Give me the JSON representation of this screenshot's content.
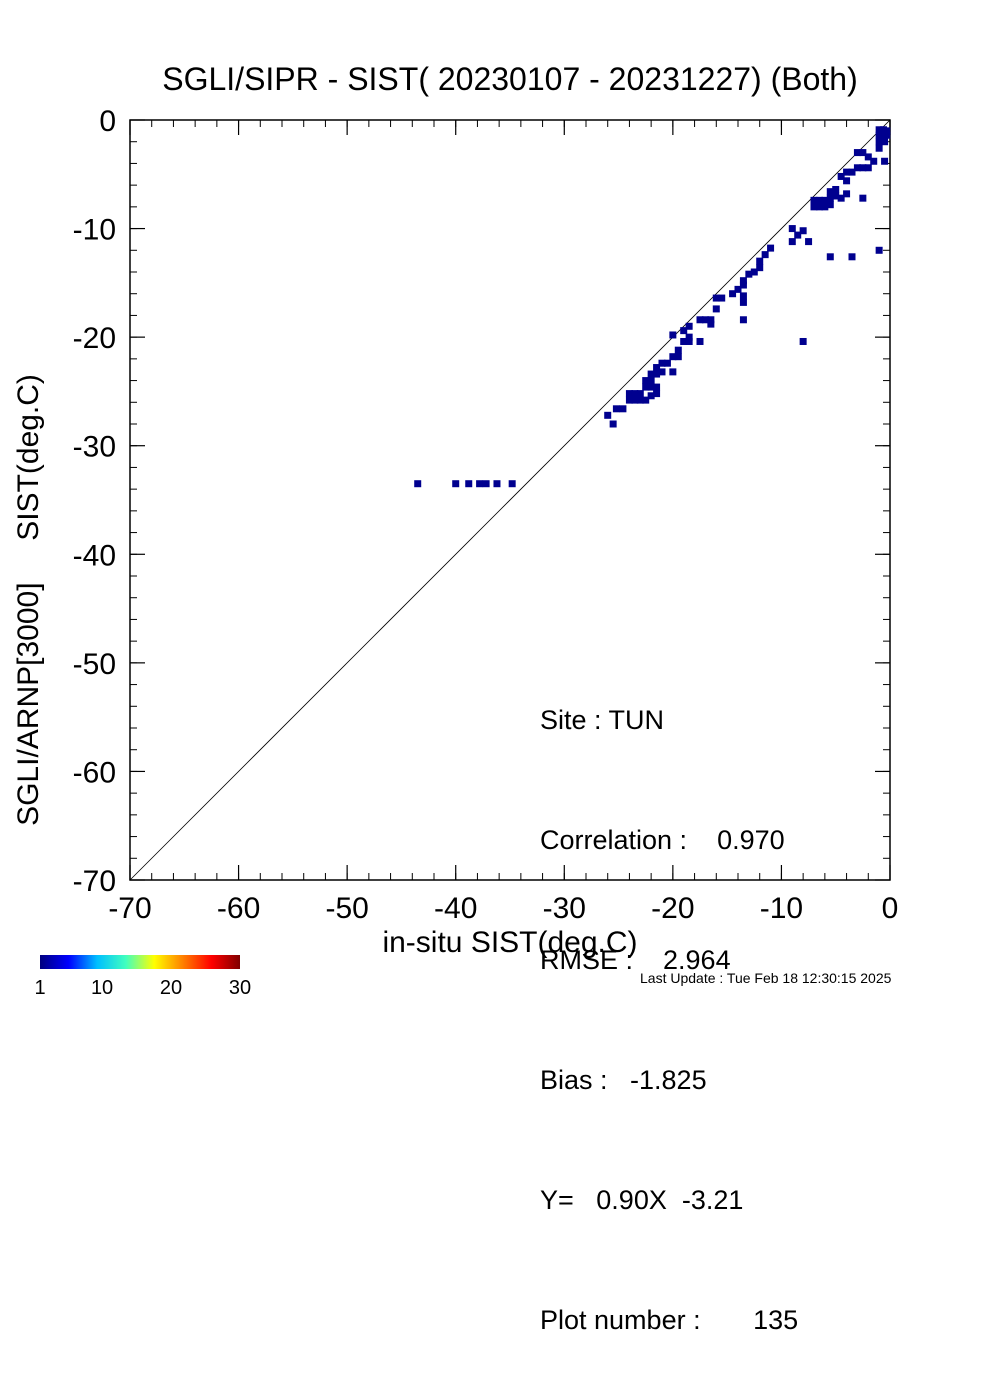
{
  "chart_data": {
    "type": "scatter",
    "plot_style": "density-binned scatter",
    "title": "SGLI/SIPR - SIST( 20230107 - 20231227) (Both)",
    "xlabel": "in-situ SIST(deg.C)",
    "ylabel": "SGLI/ARNP[3000]     SIST(deg.C)",
    "xlim": [
      -70,
      0
    ],
    "ylim": [
      -70,
      0
    ],
    "x_ticks": [
      "-70",
      "-60",
      "-50",
      "-40",
      "-30",
      "-20",
      "-10",
      "0"
    ],
    "y_ticks": [
      "-70",
      "-60",
      "-50",
      "-40",
      "-30",
      "-20",
      "-10",
      "0"
    ],
    "x_tick_values": [
      -70,
      -60,
      -50,
      -40,
      -30,
      -20,
      -10,
      0
    ],
    "y_tick_values": [
      -70,
      -60,
      -50,
      -40,
      -30,
      -20,
      -10,
      0
    ],
    "reference_line": "1:1",
    "grid": false,
    "point_color": "#00008f",
    "colorbar": {
      "ticks": [
        "1",
        "10",
        "20",
        "30"
      ],
      "tick_values": [
        1,
        10,
        20,
        30
      ],
      "colors": [
        "#00007f",
        "#0000ff",
        "#00bfff",
        "#40ffbf",
        "#ffff00",
        "#ff8000",
        "#ff0000",
        "#800000"
      ]
    },
    "points": [
      [
        -43.5,
        -33.5
      ],
      [
        -40.0,
        -33.5
      ],
      [
        -38.8,
        -33.5
      ],
      [
        -37.8,
        -33.5
      ],
      [
        -37.2,
        -33.5
      ],
      [
        -36.2,
        -33.5
      ],
      [
        -34.8,
        -33.5
      ],
      [
        -26.0,
        -27.2
      ],
      [
        -25.5,
        -28.0
      ],
      [
        -25.2,
        -26.6
      ],
      [
        -24.6,
        -26.6
      ],
      [
        -24.0,
        -25.8
      ],
      [
        -23.5,
        -25.8
      ],
      [
        -23.0,
        -25.8
      ],
      [
        -22.5,
        -25.8
      ],
      [
        -24.0,
        -25.2
      ],
      [
        -23.5,
        -25.2
      ],
      [
        -23.0,
        -25.2
      ],
      [
        -22.5,
        -24.6
      ],
      [
        -22.0,
        -24.6
      ],
      [
        -21.5,
        -24.6
      ],
      [
        -22.5,
        -24.0
      ],
      [
        -22.0,
        -24.0
      ],
      [
        -21.5,
        -25.2
      ],
      [
        -22.0,
        -25.4
      ],
      [
        -22.0,
        -23.4
      ],
      [
        -21.5,
        -23.4
      ],
      [
        -21.5,
        -22.8
      ],
      [
        -21.0,
        -22.4
      ],
      [
        -20.5,
        -22.4
      ],
      [
        -21.0,
        -23.2
      ],
      [
        -20.0,
        -23.2
      ],
      [
        -20.0,
        -21.8
      ],
      [
        -19.5,
        -21.2
      ],
      [
        -19.5,
        -21.8
      ],
      [
        -20.0,
        -19.8
      ],
      [
        -19.0,
        -20.4
      ],
      [
        -18.5,
        -20.0
      ],
      [
        -19.0,
        -19.4
      ],
      [
        -18.5,
        -19.0
      ],
      [
        -18.5,
        -20.4
      ],
      [
        -17.5,
        -20.4
      ],
      [
        -17.5,
        -18.4
      ],
      [
        -17.0,
        -18.4
      ],
      [
        -16.5,
        -18.4
      ],
      [
        -16.5,
        -18.8
      ],
      [
        -16.0,
        -17.4
      ],
      [
        -16.0,
        -16.4
      ],
      [
        -15.5,
        -16.4
      ],
      [
        -14.5,
        -16.0
      ],
      [
        -14.0,
        -15.6
      ],
      [
        -13.5,
        -15.2
      ],
      [
        -13.5,
        -14.8
      ],
      [
        -13.5,
        -16.2
      ],
      [
        -13.5,
        -16.8
      ],
      [
        -13.5,
        -18.4
      ],
      [
        -13.0,
        -14.2
      ],
      [
        -12.5,
        -14.0
      ],
      [
        -12.0,
        -13.6
      ],
      [
        -12.0,
        -13.0
      ],
      [
        -11.5,
        -12.4
      ],
      [
        -11.0,
        -11.8
      ],
      [
        -9.0,
        -10.0
      ],
      [
        -9.0,
        -11.2
      ],
      [
        -8.5,
        -10.6
      ],
      [
        -8.0,
        -10.2
      ],
      [
        -7.5,
        -11.2
      ],
      [
        -8.0,
        -20.4
      ],
      [
        -7.0,
        -7.4
      ],
      [
        -7.0,
        -8.0
      ],
      [
        -6.5,
        -7.4
      ],
      [
        -6.5,
        -8.0
      ],
      [
        -6.0,
        -7.4
      ],
      [
        -6.0,
        -8.0
      ],
      [
        -5.5,
        -7.2
      ],
      [
        -5.5,
        -7.8
      ],
      [
        -5.5,
        -6.6
      ],
      [
        -5.0,
        -6.4
      ],
      [
        -5.0,
        -7.0
      ],
      [
        -5.5,
        -12.6
      ],
      [
        -3.5,
        -12.6
      ],
      [
        -4.5,
        -7.2
      ],
      [
        -4.0,
        -6.8
      ],
      [
        -4.5,
        -5.2
      ],
      [
        -4.0,
        -4.8
      ],
      [
        -4.0,
        -5.6
      ],
      [
        -3.5,
        -4.8
      ],
      [
        -3.0,
        -4.4
      ],
      [
        -2.5,
        -4.4
      ],
      [
        -2.5,
        -7.2
      ],
      [
        -1.0,
        -12.0
      ],
      [
        -3.0,
        -3.0
      ],
      [
        -2.5,
        -3.0
      ],
      [
        -2.0,
        -3.4
      ],
      [
        -2.0,
        -4.4
      ],
      [
        -1.5,
        -3.8
      ],
      [
        -1.0,
        -2.6
      ],
      [
        -0.5,
        -3.8
      ],
      [
        -1.0,
        -2.0
      ],
      [
        -1.0,
        -1.4
      ],
      [
        -0.5,
        -1.4
      ],
      [
        -0.5,
        -2.0
      ],
      [
        -0.3,
        -1.4
      ],
      [
        -0.3,
        -1.0
      ],
      [
        -0.6,
        -0.9
      ],
      [
        -1.0,
        -0.9
      ]
    ]
  },
  "stats": {
    "site": "Site : TUN",
    "correlation": "Correlation :    0.970",
    "rmse": "RMSE :    2.964",
    "bias": "Bias :   -1.825",
    "regression": "Y=   0.90X  -3.21",
    "plot_number": "Plot number :       135"
  },
  "footer": {
    "last_update": "Last Update : Tue Feb 18 12:30:15 2025"
  }
}
